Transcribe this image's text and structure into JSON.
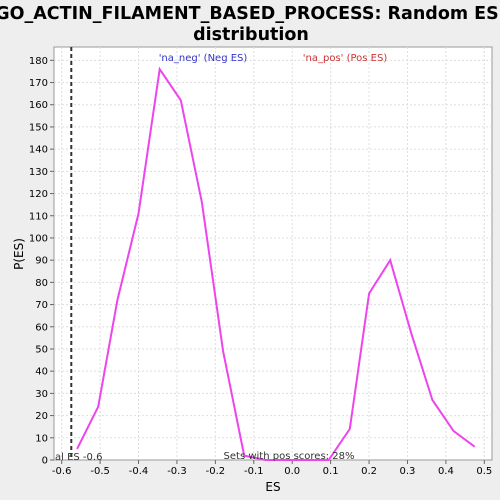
{
  "chart_data": {
    "type": "line",
    "title_line1": "GO_ACTIN_FILAMENT_BASED_PROCESS: Random ES",
    "title_line2": "distribution",
    "xlabel": "ES",
    "ylabel": "P(ES)",
    "xlim": [
      -0.62,
      0.52
    ],
    "ylim": [
      0,
      186
    ],
    "x_ticks": [
      -0.6,
      -0.5,
      -0.4,
      -0.3,
      -0.2,
      -0.1,
      0.0,
      0.1,
      0.2,
      0.3,
      0.4,
      0.5
    ],
    "x_tick_labels": [
      "-0.6",
      "-0.5",
      "-0.4",
      "-0.3",
      "-0.2",
      "-0.1",
      "0.0",
      "0.1",
      "0.2",
      "0.3",
      "0.4",
      "0.5"
    ],
    "y_ticks": [
      0,
      10,
      20,
      30,
      40,
      50,
      60,
      70,
      80,
      90,
      100,
      110,
      120,
      130,
      140,
      150,
      160,
      170,
      180
    ],
    "grid": true,
    "line_color": "#ee44ee",
    "series": [
      {
        "x": [
          -0.56,
          -0.505,
          -0.455,
          -0.4,
          -0.345,
          -0.29,
          -0.235,
          -0.18,
          -0.125,
          -0.07,
          -0.015,
          0.04,
          0.095,
          0.15,
          0.2,
          0.255,
          0.31,
          0.365,
          0.42,
          0.475
        ],
        "values": [
          5,
          24,
          72,
          111,
          176,
          162,
          116,
          49,
          2,
          0,
          0,
          0,
          0,
          14,
          75,
          90,
          57,
          27,
          13,
          6
        ]
      }
    ],
    "observed_es": -0.575,
    "observed_line_color": "#333333",
    "annotations": {
      "neg_label": "'na_neg' (Neg ES)",
      "neg_color": "#3333cc",
      "pos_label": "'na_pos' (Pos ES)",
      "pos_color": "#cc3333",
      "actual_es_label": "al ES -0.6",
      "pos_scores_label": "Sets with pos scores: 28%"
    }
  }
}
